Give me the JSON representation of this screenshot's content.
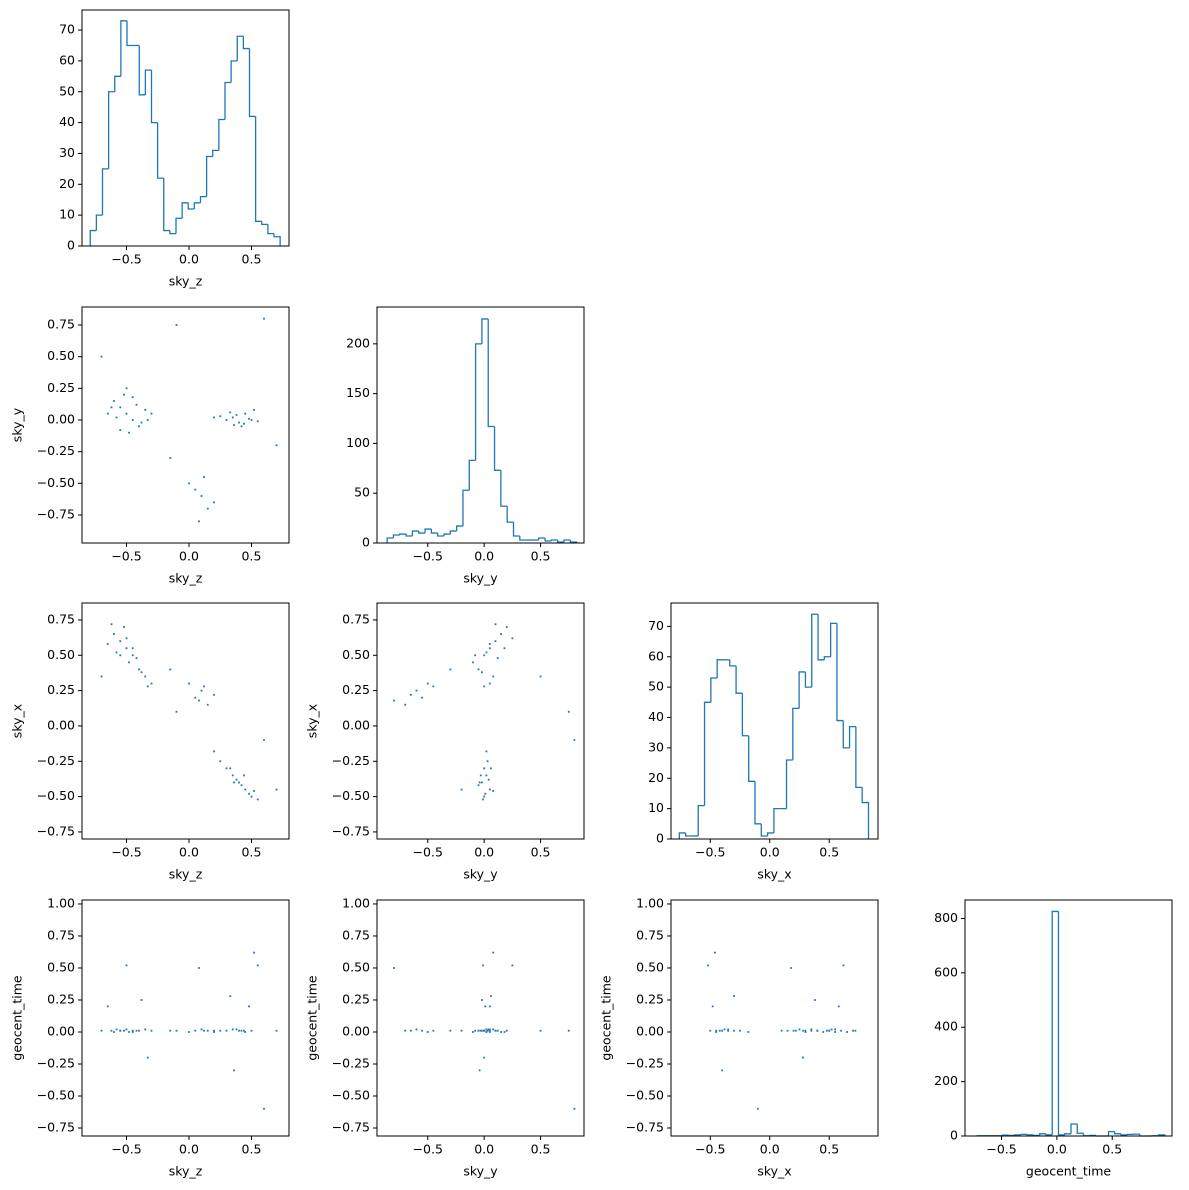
{
  "chart_data": [
    {
      "type": "histogram",
      "xlabel": "sky_z",
      "color": "#1f77b4",
      "bins": [
        -0.79,
        -0.741,
        -0.692,
        -0.643,
        -0.594,
        -0.545,
        -0.496,
        -0.447,
        -0.398,
        -0.349,
        -0.3,
        -0.251,
        -0.202,
        -0.153,
        -0.104,
        -0.055,
        -0.006,
        0.043,
        0.092,
        0.141,
        0.19,
        0.239,
        0.288,
        0.337,
        0.386,
        0.435,
        0.484,
        0.533,
        0.582,
        0.631,
        0.68,
        0.729
      ],
      "counts": [
        5,
        10,
        25,
        50,
        55,
        73,
        65,
        65,
        49,
        57,
        40,
        22,
        5,
        4,
        9,
        14,
        12,
        14,
        16,
        29,
        31,
        41,
        53,
        60,
        68,
        64,
        42,
        8,
        7,
        4,
        3
      ],
      "xlim": [
        -0.856,
        0.8
      ],
      "ylim": [
        0,
        76.5
      ],
      "xticks": [
        {
          "value": -0.5,
          "label": "−0.5"
        },
        {
          "value": 0,
          "label": "0.0"
        },
        0.5
      ],
      "yticks": [
        0,
        10,
        20,
        30,
        40,
        50,
        60,
        70
      ]
    },
    {
      "type": "scatter",
      "xlabel": "sky_z",
      "ylabel": "sky_y",
      "color": "#1f77b4",
      "x": [
        -0.55,
        -0.5,
        -0.45,
        -0.6,
        -0.4,
        -0.35,
        -0.52,
        -0.48,
        -0.3,
        -0.58,
        -0.42,
        -0.65,
        -0.5,
        -0.38,
        -0.55,
        -0.45,
        -0.62,
        -0.33,
        0.3,
        0.35,
        0.4,
        0.45,
        0.5,
        0.38,
        0.42,
        0.25,
        0.48,
        0.55,
        0.33,
        0.44,
        0.2,
        0.52,
        0.36,
        0.05,
        0.1,
        0.15,
        0,
        0.2,
        0.08,
        -0.15,
        0.12,
        -0.7,
        0.7,
        -0.1,
        0.6
      ],
      "y": [
        0.1,
        0.05,
        0,
        0.15,
        -0.05,
        0.08,
        0.2,
        -0.1,
        0.05,
        0.02,
        0.12,
        0.05,
        0.25,
        -0.02,
        -0.08,
        0.18,
        0.1,
        0,
        0,
        0.02,
        -0.02,
        0.05,
        0,
        0.04,
        -0.05,
        0.03,
        0.01,
        -0.01,
        0.06,
        -0.03,
        0.02,
        0.08,
        -0.04,
        -0.55,
        -0.6,
        -0.7,
        -0.5,
        -0.65,
        -0.8,
        -0.3,
        -0.45,
        0.5,
        -0.2,
        0.75,
        0.8
      ],
      "xlim": [
        -0.856,
        0.8
      ],
      "ylim": [
        -0.971,
        0.892
      ],
      "xticks": [
        {
          "value": -0.5,
          "label": "−0.5"
        },
        {
          "value": 0,
          "label": "0.0"
        },
        0.5
      ],
      "yticks": [
        {
          "value": -0.75,
          "label": "−0.75"
        },
        {
          "value": -0.5,
          "label": "−0.50"
        },
        {
          "value": -0.25,
          "label": "−0.25"
        },
        {
          "value": 0,
          "label": "0.00"
        },
        0.25,
        {
          "value": 0.5,
          "label": "0.50"
        },
        0.75
      ]
    },
    {
      "type": "histogram",
      "xlabel": "sky_y",
      "color": "#1f77b4",
      "bins": [
        -0.86,
        -0.804,
        -0.748,
        -0.692,
        -0.636,
        -0.58,
        -0.524,
        -0.468,
        -0.412,
        -0.356,
        -0.3,
        -0.244,
        -0.188,
        -0.132,
        -0.076,
        -0.02,
        0.036,
        0.092,
        0.148,
        0.204,
        0.26,
        0.316,
        0.372,
        0.428,
        0.484,
        0.54,
        0.596,
        0.652,
        0.708,
        0.764,
        0.82
      ],
      "counts": [
        5,
        8,
        9,
        7,
        12,
        10,
        14,
        10,
        7,
        9,
        12,
        17,
        53,
        83,
        200,
        225,
        117,
        73,
        37,
        21,
        7,
        3,
        3,
        3,
        5,
        2,
        3,
        1,
        3,
        1
      ],
      "xlim": [
        -0.95,
        0.885
      ],
      "ylim": [
        0,
        237
      ],
      "xticks": [
        {
          "value": -0.5,
          "label": "−0.5"
        },
        {
          "value": 0,
          "label": "0.0"
        },
        0.5
      ],
      "yticks": [
        0,
        50,
        100,
        150,
        200
      ]
    },
    {
      "type": "scatter",
      "xlabel": "sky_z",
      "ylabel": "sky_x",
      "color": "#1f77b4",
      "x": [
        -0.55,
        -0.5,
        -0.45,
        -0.6,
        -0.4,
        -0.35,
        -0.52,
        -0.48,
        -0.3,
        -0.58,
        -0.42,
        -0.65,
        -0.5,
        -0.38,
        -0.55,
        -0.45,
        -0.62,
        -0.33,
        0.3,
        0.35,
        0.4,
        0.45,
        0.5,
        0.38,
        0.42,
        0.25,
        0.48,
        0.55,
        0.33,
        0.44,
        0.2,
        0.52,
        0.36,
        0.05,
        0.1,
        0.15,
        0,
        0.2,
        0.08,
        -0.15,
        0.12,
        -0.7,
        0.7,
        -0.1,
        0.6
      ],
      "y": [
        0.6,
        0.55,
        0.5,
        0.65,
        0.4,
        0.35,
        0.7,
        0.45,
        0.3,
        0.52,
        0.48,
        0.58,
        0.62,
        0.38,
        0.5,
        0.55,
        0.72,
        0.28,
        -0.3,
        -0.35,
        -0.4,
        -0.45,
        -0.5,
        -0.38,
        -0.42,
        -0.25,
        -0.48,
        -0.52,
        -0.3,
        -0.35,
        -0.18,
        -0.46,
        -0.4,
        0.2,
        0.25,
        0.15,
        0.3,
        0.22,
        0.18,
        0.4,
        0.28,
        0.35,
        -0.45,
        0.1,
        -0.1
      ],
      "xlim": [
        -0.856,
        0.8
      ],
      "ylim": [
        -0.8,
        0.87
      ],
      "xticks": [
        {
          "value": -0.5,
          "label": "−0.5"
        },
        {
          "value": 0,
          "label": "0.0"
        },
        0.5
      ],
      "yticks": [
        {
          "value": -0.75,
          "label": "−0.75"
        },
        {
          "value": -0.5,
          "label": "−0.50"
        },
        {
          "value": -0.25,
          "label": "−0.25"
        },
        {
          "value": 0,
          "label": "0.00"
        },
        0.25,
        {
          "value": 0.5,
          "label": "0.50"
        },
        0.75
      ]
    },
    {
      "type": "scatter",
      "xlabel": "sky_y",
      "ylabel": "sky_x",
      "color": "#1f77b4",
      "x": [
        0.1,
        0.05,
        0,
        0.15,
        -0.05,
        0.08,
        0.2,
        -0.1,
        0.05,
        0.02,
        0.12,
        0.05,
        0.25,
        -0.02,
        -0.08,
        0.18,
        0.1,
        0,
        0,
        0.02,
        -0.02,
        0.05,
        0,
        0.04,
        -0.05,
        0.03,
        0.01,
        -0.01,
        0.06,
        -0.03,
        0.02,
        0.08,
        -0.04,
        -0.55,
        -0.6,
        -0.7,
        -0.5,
        -0.65,
        -0.8,
        -0.3,
        -0.45,
        0.5,
        -0.2,
        0.75,
        0.8
      ],
      "y": [
        0.6,
        0.55,
        0.5,
        0.65,
        0.4,
        0.35,
        0.7,
        0.45,
        0.3,
        0.52,
        0.48,
        0.58,
        0.62,
        0.38,
        0.5,
        0.55,
        0.72,
        0.28,
        -0.3,
        -0.35,
        -0.4,
        -0.45,
        -0.5,
        -0.38,
        -0.42,
        -0.25,
        -0.48,
        -0.52,
        -0.3,
        -0.35,
        -0.18,
        -0.46,
        -0.4,
        0.2,
        0.25,
        0.15,
        0.3,
        0.22,
        0.18,
        0.4,
        0.28,
        0.35,
        -0.45,
        0.1,
        -0.1
      ],
      "xlim": [
        -0.95,
        0.885
      ],
      "ylim": [
        -0.8,
        0.87
      ],
      "xticks": [
        {
          "value": -0.5,
          "label": "−0.5"
        },
        {
          "value": 0,
          "label": "0.0"
        },
        0.5
      ],
      "yticks": [
        {
          "value": -0.75,
          "label": "−0.75"
        },
        {
          "value": -0.5,
          "label": "−0.50"
        },
        {
          "value": -0.25,
          "label": "−0.25"
        },
        {
          "value": 0,
          "label": "0.00"
        },
        0.25,
        {
          "value": 0.5,
          "label": "0.50"
        },
        0.75
      ]
    },
    {
      "type": "histogram",
      "xlabel": "sky_x",
      "color": "#1f77b4",
      "bins": [
        -0.76,
        -0.707,
        -0.654,
        -0.601,
        -0.548,
        -0.495,
        -0.442,
        -0.389,
        -0.336,
        -0.283,
        -0.23,
        -0.177,
        -0.124,
        -0.071,
        -0.018,
        0.035,
        0.088,
        0.141,
        0.194,
        0.247,
        0.3,
        0.353,
        0.406,
        0.459,
        0.512,
        0.565,
        0.618,
        0.671,
        0.724,
        0.777,
        0.83
      ],
      "counts": [
        2,
        1,
        1,
        11,
        45,
        53,
        59,
        59,
        57,
        48,
        34,
        19,
        5,
        1,
        2,
        10,
        10,
        26,
        43,
        55,
        50,
        74,
        59,
        60,
        71,
        39,
        30,
        37,
        17,
        12
      ],
      "xlim": [
        -0.83,
        0.91
      ],
      "ylim": [
        0,
        77.7
      ],
      "xticks": [
        {
          "value": -0.5,
          "label": "−0.5"
        },
        {
          "value": 0,
          "label": "0.0"
        },
        0.5
      ],
      "yticks": [
        0,
        10,
        20,
        30,
        40,
        50,
        60,
        70
      ]
    },
    {
      "type": "scatter",
      "xlabel": "sky_z",
      "ylabel": "geocent_time",
      "color": "#1f77b4",
      "x": [
        -0.55,
        -0.5,
        -0.45,
        -0.6,
        -0.4,
        -0.35,
        -0.52,
        -0.48,
        -0.3,
        -0.58,
        -0.42,
        -0.65,
        -0.5,
        -0.38,
        -0.55,
        -0.45,
        -0.62,
        -0.33,
        0.3,
        0.35,
        0.4,
        0.45,
        0.5,
        0.38,
        0.42,
        0.25,
        0.48,
        0.55,
        0.33,
        0.44,
        0.2,
        0.52,
        0.36,
        0.05,
        0.1,
        0.15,
        0,
        0.2,
        0.08,
        -0.15,
        0.12,
        -0.7,
        0.7,
        -0.1,
        0.6
      ],
      "y": [
        0.01,
        0.02,
        0.01,
        0,
        0.01,
        0.02,
        0.01,
        0,
        0.01,
        0.02,
        0.01,
        0.2,
        0.52,
        0.25,
        0.01,
        0,
        0.01,
        -0.2,
        0.01,
        0.02,
        0.01,
        0,
        0.01,
        0.02,
        0.01,
        0.01,
        0.2,
        0.52,
        0.28,
        0.01,
        0,
        0.62,
        -0.3,
        0.01,
        0.02,
        0.01,
        0,
        0.01,
        0.5,
        0.01,
        0.01,
        0.01,
        0.01,
        0.01,
        -0.6
      ],
      "xlim": [
        -0.856,
        0.8
      ],
      "ylim": [
        -0.8125,
        1.031
      ],
      "xticks": [
        {
          "value": -0.5,
          "label": "−0.5"
        },
        {
          "value": 0,
          "label": "0.0"
        },
        0.5
      ],
      "yticks": [
        {
          "value": -0.75,
          "label": "−0.75"
        },
        {
          "value": -0.5,
          "label": "−0.50"
        },
        {
          "value": -0.25,
          "label": "−0.25"
        },
        {
          "value": 0,
          "label": "0.00"
        },
        0.25,
        {
          "value": 0.5,
          "label": "0.50"
        },
        0.75,
        {
          "value": 1,
          "label": "1.00"
        }
      ]
    },
    {
      "type": "scatter",
      "xlabel": "sky_y",
      "ylabel": "geocent_time",
      "color": "#1f77b4",
      "x": [
        0.1,
        0.05,
        0,
        0.15,
        -0.05,
        0.08,
        0.2,
        -0.1,
        0.05,
        0.02,
        0.12,
        0.05,
        0.25,
        -0.02,
        -0.08,
        0.18,
        0.1,
        0,
        0,
        0.02,
        -0.02,
        0.05,
        0,
        0.04,
        -0.05,
        0.03,
        0.01,
        -0.01,
        0.06,
        -0.03,
        0.02,
        0.08,
        -0.04,
        -0.55,
        -0.6,
        -0.7,
        -0.5,
        -0.65,
        -0.8,
        -0.3,
        -0.45,
        0.5,
        -0.2,
        0.75,
        0.8
      ],
      "y": [
        0.01,
        0.02,
        0.01,
        0,
        0.01,
        0.02,
        0.01,
        0,
        0.01,
        0.02,
        0.01,
        0.2,
        0.52,
        0.25,
        0.01,
        0,
        0.01,
        -0.2,
        0.01,
        0.02,
        0.01,
        0,
        0.01,
        0.02,
        0.01,
        0.01,
        0.2,
        0.52,
        0.28,
        0.01,
        0,
        0.62,
        -0.3,
        0.01,
        0.02,
        0.01,
        0,
        0.01,
        0.5,
        0.01,
        0.01,
        0.01,
        0.01,
        0.01,
        -0.6
      ],
      "xlim": [
        -0.95,
        0.885
      ],
      "ylim": [
        -0.8125,
        1.031
      ],
      "xticks": [
        {
          "value": -0.5,
          "label": "−0.5"
        },
        {
          "value": 0,
          "label": "0.0"
        },
        0.5
      ],
      "yticks": [
        {
          "value": -0.75,
          "label": "−0.75"
        },
        {
          "value": -0.5,
          "label": "−0.50"
        },
        {
          "value": -0.25,
          "label": "−0.25"
        },
        {
          "value": 0,
          "label": "0.00"
        },
        0.25,
        {
          "value": 0.5,
          "label": "0.50"
        },
        0.75,
        {
          "value": 1,
          "label": "1.00"
        }
      ]
    },
    {
      "type": "scatter",
      "xlabel": "sky_x",
      "ylabel": "geocent_time",
      "color": "#1f77b4",
      "x": [
        0.6,
        0.55,
        0.5,
        0.65,
        0.4,
        0.35,
        0.7,
        0.45,
        0.3,
        0.52,
        0.48,
        0.58,
        0.62,
        0.38,
        0.5,
        0.55,
        0.72,
        0.28,
        -0.3,
        -0.35,
        -0.4,
        -0.45,
        -0.5,
        -0.38,
        -0.42,
        -0.25,
        -0.48,
        -0.52,
        -0.3,
        -0.35,
        -0.18,
        -0.46,
        -0.4,
        0.2,
        0.25,
        0.15,
        0.3,
        0.22,
        0.18,
        0.4,
        0.28,
        0.35,
        -0.45,
        0.1,
        -0.1
      ],
      "y": [
        0.01,
        0.02,
        0.01,
        0,
        0.01,
        0.02,
        0.01,
        0,
        0.01,
        0.02,
        0.01,
        0.2,
        0.52,
        0.25,
        0.01,
        0,
        0.01,
        -0.2,
        0.01,
        0.02,
        0.01,
        0,
        0.01,
        0.02,
        0.01,
        0.01,
        0.2,
        0.52,
        0.28,
        0.01,
        0,
        0.62,
        -0.3,
        0.01,
        0.02,
        0.01,
        0,
        0.01,
        0.5,
        0.01,
        0.01,
        0.01,
        0.01,
        0.01,
        -0.6
      ],
      "xlim": [
        -0.83,
        0.91
      ],
      "ylim": [
        -0.8125,
        1.031
      ],
      "xticks": [
        {
          "value": -0.5,
          "label": "−0.5"
        },
        {
          "value": 0,
          "label": "0.0"
        },
        0.5
      ],
      "yticks": [
        {
          "value": -0.75,
          "label": "−0.75"
        },
        {
          "value": -0.5,
          "label": "−0.50"
        },
        {
          "value": -0.25,
          "label": "−0.25"
        },
        {
          "value": 0,
          "label": "0.00"
        },
        0.25,
        {
          "value": 0.5,
          "label": "0.50"
        },
        0.75,
        {
          "value": 1,
          "label": "1.00"
        }
      ]
    },
    {
      "type": "histogram",
      "xlabel": "geocent_time",
      "color": "#1f77b4",
      "bins": [
        -0.72,
        -0.6635,
        -0.607,
        -0.5505,
        -0.494,
        -0.4375,
        -0.381,
        -0.3245,
        -0.268,
        -0.2115,
        -0.155,
        -0.0985,
        -0.042,
        0.0145,
        0.071,
        0.1275,
        0.184,
        0.2405,
        0.297,
        0.3535,
        0.41,
        0.4665,
        0.523,
        0.5795,
        0.636,
        0.6925,
        0.749,
        0.8055,
        0.862,
        0.9185,
        0.975
      ],
      "counts": [
        1,
        1,
        1,
        1,
        3,
        2,
        4,
        6,
        4,
        2,
        8,
        4,
        826,
        4,
        8,
        44,
        10,
        1,
        2,
        0,
        0,
        16,
        8,
        4,
        6,
        7,
        0,
        0,
        1,
        4
      ],
      "xlim": [
        -0.83,
        1.04
      ],
      "ylim": [
        0,
        868
      ],
      "xticks": [
        {
          "value": -0.5,
          "label": "−0.5"
        },
        {
          "value": 0,
          "label": "0.0"
        },
        0.5
      ],
      "yticks": [
        0,
        200,
        400,
        600,
        800
      ]
    }
  ]
}
